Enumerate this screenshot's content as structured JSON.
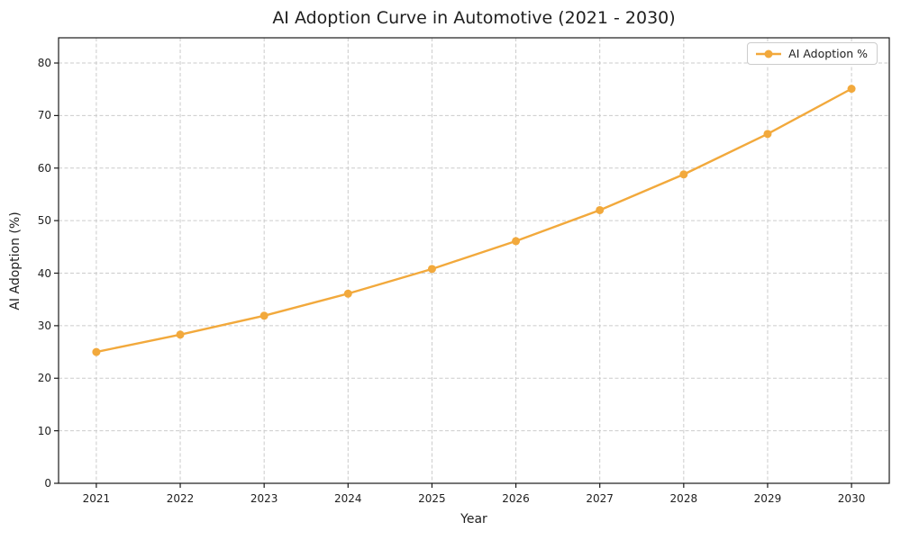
{
  "figure": {
    "title": "AI Adoption Curve in Automotive (2021 - 2030)",
    "xlabel": "Year",
    "ylabel": "AI Adoption (%)"
  },
  "legend": {
    "label": "AI Adoption %"
  },
  "colors": {
    "line": "#F2A93C",
    "marker": "#F2A93C",
    "grid": "#CBCBCB",
    "spine": "#1A1A1A",
    "text": "#1F1F1F",
    "legend_border": "#CCCCCC",
    "background": "#FFFFFF"
  },
  "chart_data": {
    "type": "line",
    "title": "AI Adoption Curve in Automotive (2021 - 2030)",
    "xlabel": "Year",
    "ylabel": "AI Adoption (%)",
    "categories": [
      2021,
      2022,
      2023,
      2024,
      2025,
      2026,
      2027,
      2028,
      2029,
      2030
    ],
    "series": [
      {
        "name": "AI Adoption %",
        "values": [
          25.0,
          28.3,
          31.9,
          36.1,
          40.8,
          46.1,
          52.0,
          58.8,
          66.5,
          75.1
        ]
      }
    ],
    "yticks": [
      0,
      10,
      20,
      30,
      40,
      50,
      60,
      70,
      80
    ],
    "ylim": [
      0,
      84.8
    ],
    "xlim": [
      2020.55,
      2030.45
    ],
    "grid": true,
    "grid_style": "dashed",
    "marker": "circle",
    "legend_position": "upper right"
  }
}
